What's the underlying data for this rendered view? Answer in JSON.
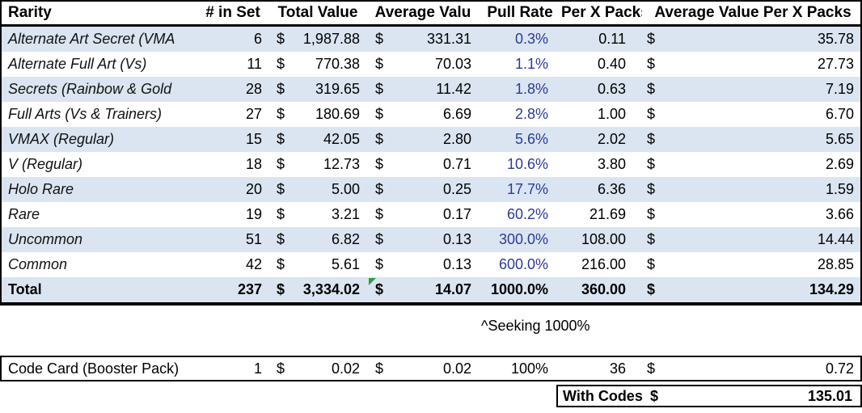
{
  "currency_symbol": "$",
  "colors": {
    "stripe_blue": "#dbe5f1",
    "pull_rate_blue": "#2b3a9b",
    "error_indicator_green": "#2f9e44",
    "border_black": "#000000"
  },
  "table": {
    "headers": [
      "Rarity",
      "# in Set",
      "Total Value",
      "Average Valu",
      "Pull Rate",
      "Per X Packs",
      "Average Value Per X Packs"
    ],
    "rows": [
      {
        "rarity": "Alternate Art Secret (VMA",
        "in_set": "6",
        "total": "1,987.88",
        "avg": "331.31",
        "pull": "0.3%",
        "per_x": "0.11",
        "avg_per_x": "35.78"
      },
      {
        "rarity": "Alternate Full Art (Vs)",
        "in_set": "11",
        "total": "770.38",
        "avg": "70.03",
        "pull": "1.1%",
        "per_x": "0.40",
        "avg_per_x": "27.73"
      },
      {
        "rarity": "Secrets (Rainbow & Gold",
        "in_set": "28",
        "total": "319.65",
        "avg": "11.42",
        "pull": "1.8%",
        "per_x": "0.63",
        "avg_per_x": "7.19"
      },
      {
        "rarity": "Full Arts (Vs & Trainers)",
        "in_set": "27",
        "total": "180.69",
        "avg": "6.69",
        "pull": "2.8%",
        "per_x": "1.00",
        "avg_per_x": "6.70"
      },
      {
        "rarity": "VMAX (Regular)",
        "in_set": "15",
        "total": "42.05",
        "avg": "2.80",
        "pull": "5.6%",
        "per_x": "2.02",
        "avg_per_x": "5.65"
      },
      {
        "rarity": "V (Regular)",
        "in_set": "18",
        "total": "12.73",
        "avg": "0.71",
        "pull": "10.6%",
        "per_x": "3.80",
        "avg_per_x": "2.69"
      },
      {
        "rarity": "Holo Rare",
        "in_set": "20",
        "total": "5.00",
        "avg": "0.25",
        "pull": "17.7%",
        "per_x": "6.36",
        "avg_per_x": "1.59"
      },
      {
        "rarity": "Rare",
        "in_set": "19",
        "total": "3.21",
        "avg": "0.17",
        "pull": "60.2%",
        "per_x": "21.69",
        "avg_per_x": "3.66"
      },
      {
        "rarity": "Uncommon",
        "in_set": "51",
        "total": "6.82",
        "avg": "0.13",
        "pull": "300.0%",
        "per_x": "108.00",
        "avg_per_x": "14.44"
      },
      {
        "rarity": "Common",
        "in_set": "42",
        "total": "5.61",
        "avg": "0.13",
        "pull": "600.0%",
        "per_x": "216.00",
        "avg_per_x": "28.85"
      }
    ],
    "total_row": {
      "rarity": "Total",
      "in_set": "237",
      "total": "3,334.02",
      "avg": "14.07",
      "pull": "1000.0%",
      "per_x": "360.00",
      "avg_per_x": "134.29"
    }
  },
  "note": "^Seeking 1000%",
  "code_card_row": {
    "rarity": "Code Card (Booster Pack)",
    "in_set": "1",
    "total": "0.02",
    "avg": "0.02",
    "pull": "100%",
    "per_x": "36",
    "avg_per_x": "0.72"
  },
  "with_codes": {
    "label": "With Codes",
    "value": "135.01"
  }
}
